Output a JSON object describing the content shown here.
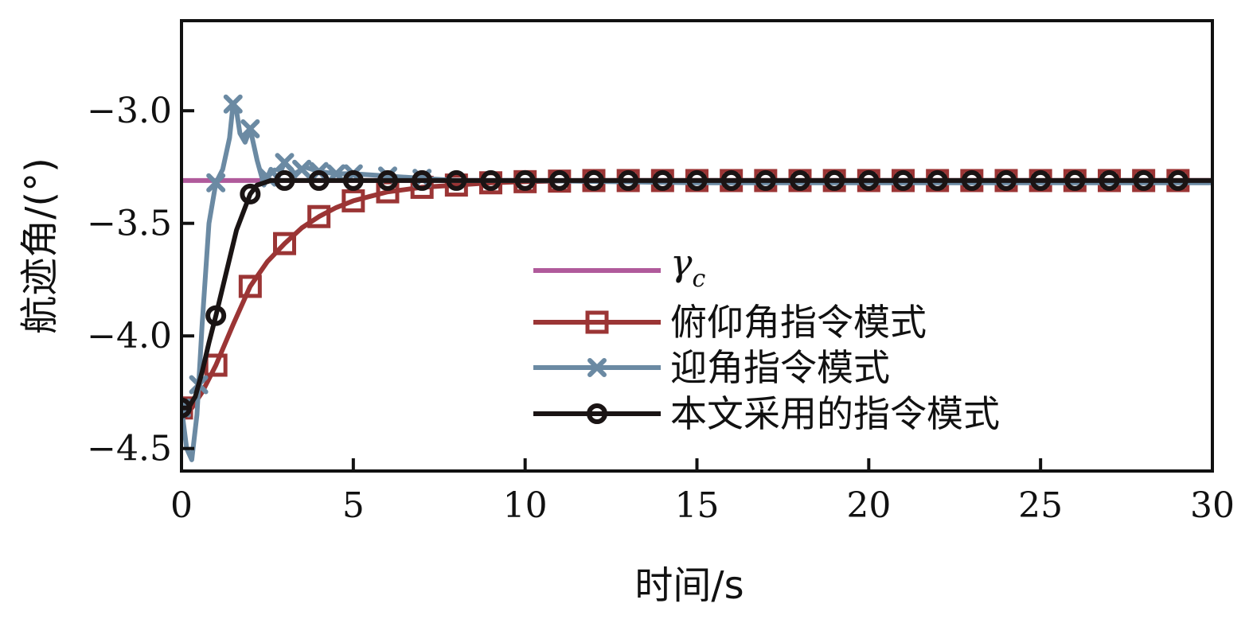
{
  "chart_data": {
    "type": "line",
    "xlabel": "时间/s",
    "ylabel": "航迹角/(°)",
    "xlim": [
      0,
      30
    ],
    "ylim": [
      -4.6,
      -2.6
    ],
    "xticks": [
      0,
      5,
      10,
      15,
      20,
      25,
      30
    ],
    "yticks": [
      -3.0,
      -3.5,
      -4.0,
      -4.5
    ],
    "ytick_labels": [
      "−3.0",
      "−3.5",
      "−4.0",
      "−4.5"
    ],
    "grid": false,
    "legend_position": "bottom-right",
    "series": [
      {
        "name": "γc",
        "name_symbol": "γ",
        "name_subscript": "c",
        "color": "#b05a9b",
        "marker": "none",
        "x": [
          0,
          30
        ],
        "y": [
          -3.31,
          -3.31
        ]
      },
      {
        "name": "俯仰角指令模式",
        "color": "#9b3535",
        "marker": "square",
        "x": [
          0,
          0.3,
          0.6,
          1,
          1.5,
          2,
          2.5,
          3,
          3.5,
          4,
          4.5,
          5,
          5.5,
          6,
          6.5,
          7,
          8,
          9,
          10,
          12,
          15,
          20,
          25,
          30
        ],
        "y": [
          -4.32,
          -4.32,
          -4.25,
          -4.13,
          -3.95,
          -3.78,
          -3.67,
          -3.59,
          -3.52,
          -3.47,
          -3.43,
          -3.4,
          -3.38,
          -3.36,
          -3.35,
          -3.34,
          -3.33,
          -3.32,
          -3.315,
          -3.31,
          -3.31,
          -3.31,
          -3.31,
          -3.31
        ],
        "marker_x": [
          0,
          1,
          2,
          3,
          4,
          5,
          6,
          7,
          8,
          9,
          10,
          11,
          12,
          13,
          14,
          15,
          16,
          17,
          18,
          19,
          20,
          21,
          22,
          23,
          24,
          25,
          26,
          27,
          28,
          29
        ]
      },
      {
        "name": "迎角指令模式",
        "color": "#6b8aa3",
        "marker": "x",
        "x": [
          0,
          0.15,
          0.3,
          0.45,
          0.6,
          0.8,
          1.0,
          1.2,
          1.4,
          1.5,
          1.6,
          1.7,
          1.85,
          2.0,
          2.2,
          2.4,
          2.6,
          2.8,
          3.0,
          3.3,
          3.6,
          4.0,
          4.5,
          5,
          6,
          7,
          8,
          10,
          15,
          20,
          25,
          30
        ],
        "y": [
          -4.32,
          -4.5,
          -4.55,
          -4.35,
          -3.95,
          -3.5,
          -3.32,
          -3.26,
          -3.12,
          -2.97,
          -3.0,
          -3.1,
          -3.14,
          -3.08,
          -3.22,
          -3.33,
          -3.26,
          -3.3,
          -3.23,
          -3.28,
          -3.25,
          -3.27,
          -3.28,
          -3.28,
          -3.29,
          -3.3,
          -3.31,
          -3.31,
          -3.32,
          -3.32,
          -3.32,
          -3.32
        ],
        "marker_x": [
          0,
          0.5,
          1,
          1.5,
          2,
          2.5,
          3,
          3.5,
          4,
          4.5,
          5,
          6,
          7
        ]
      },
      {
        "name": "本文采用的指令模式",
        "color": "#1a1414",
        "marker": "circle",
        "x": [
          0,
          0.2,
          0.4,
          0.6,
          0.8,
          1.0,
          1.3,
          1.6,
          2.0,
          2.2,
          2.4,
          2.6,
          2.8,
          3.0,
          4.0,
          5.0,
          10,
          15,
          20,
          25,
          30
        ],
        "y": [
          -4.32,
          -4.32,
          -4.27,
          -4.16,
          -4.03,
          -3.91,
          -3.72,
          -3.53,
          -3.37,
          -3.33,
          -3.32,
          -3.31,
          -3.31,
          -3.31,
          -3.31,
          -3.31,
          -3.31,
          -3.31,
          -3.31,
          -3.31,
          -3.31
        ],
        "marker_x": [
          0,
          1,
          2,
          3,
          4,
          5,
          6,
          7,
          8,
          9,
          10,
          11,
          12,
          13,
          14,
          15,
          16,
          17,
          18,
          19,
          20,
          21,
          22,
          23,
          24,
          25,
          26,
          27,
          28,
          29
        ]
      }
    ]
  }
}
